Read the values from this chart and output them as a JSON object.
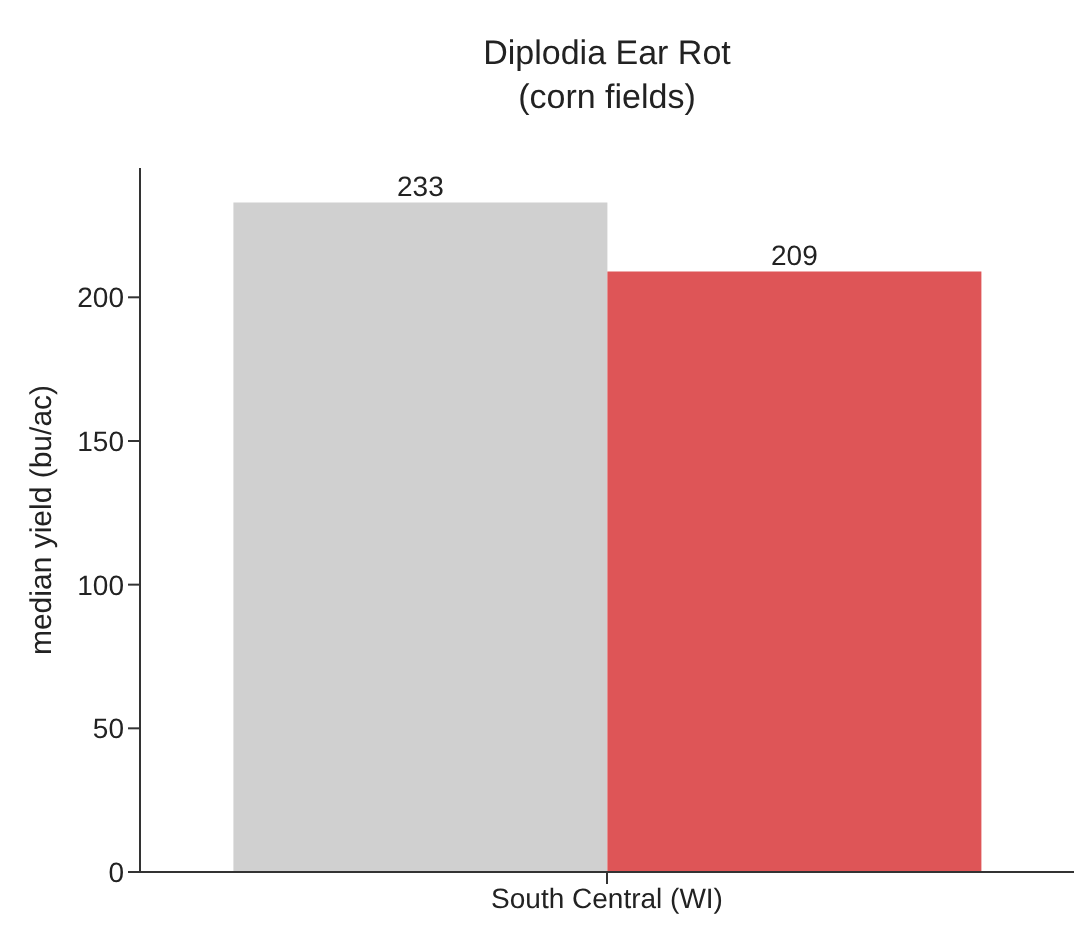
{
  "chart_data": {
    "type": "bar",
    "title": "Diplodia Ear Rot\n(corn fields)",
    "ylabel": "median yield (bu/ac)",
    "categories": [
      "South Central (WI)"
    ],
    "series": [
      {
        "color": "#d0d0d0",
        "values": [
          233
        ]
      },
      {
        "color": "#de5557",
        "values": [
          209
        ]
      }
    ],
    "ylim": [
      0,
      245
    ],
    "yticks": [
      0,
      50,
      100,
      150,
      200
    ],
    "data_labels": true,
    "grid": false,
    "legend": false
  }
}
